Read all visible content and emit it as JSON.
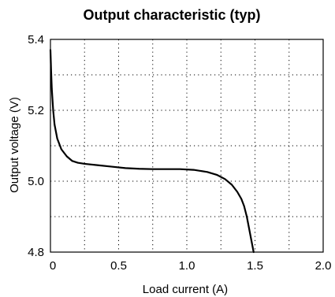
{
  "chart_data": {
    "type": "line",
    "title": "Output characteristic (typ)",
    "xlabel": "Load current (A)",
    "ylabel": "Output voltage (V)",
    "xlim": [
      0,
      2.0
    ],
    "ylim": [
      4.8,
      5.4
    ],
    "x_ticks": [
      0,
      0.5,
      1.0,
      1.5,
      2.0
    ],
    "x_tick_labels": [
      "0",
      "0.5",
      "1.0",
      "1.5",
      "2.0"
    ],
    "y_ticks": [
      4.8,
      5.0,
      5.2,
      5.4
    ],
    "y_tick_labels": [
      "4.8",
      "5.0",
      "5.2",
      "5.4"
    ],
    "x_grid": [
      0.25,
      0.5,
      0.75,
      1.0,
      1.25,
      1.5,
      1.75
    ],
    "y_grid": [
      4.9,
      5.0,
      5.1,
      5.2,
      5.3
    ],
    "grid": true,
    "grid_style": "dotted",
    "line_color": "#000000",
    "series": [
      {
        "x": [
          0.0,
          0.005,
          0.01,
          0.02,
          0.03,
          0.05,
          0.08,
          0.12,
          0.16,
          0.2,
          0.25,
          0.35,
          0.45,
          0.55,
          0.65,
          0.75,
          0.85,
          0.95,
          1.05,
          1.15,
          1.22,
          1.28,
          1.33,
          1.37,
          1.4,
          1.42,
          1.44,
          1.455,
          1.465,
          1.475,
          1.485,
          1.49
        ],
        "y": [
          5.37,
          5.31,
          5.26,
          5.2,
          5.16,
          5.12,
          5.09,
          5.07,
          5.057,
          5.052,
          5.049,
          5.045,
          5.041,
          5.037,
          5.035,
          5.034,
          5.034,
          5.034,
          5.032,
          5.026,
          5.018,
          5.006,
          4.99,
          4.97,
          4.95,
          4.93,
          4.9,
          4.87,
          4.85,
          4.83,
          4.81,
          4.8
        ]
      }
    ]
  }
}
